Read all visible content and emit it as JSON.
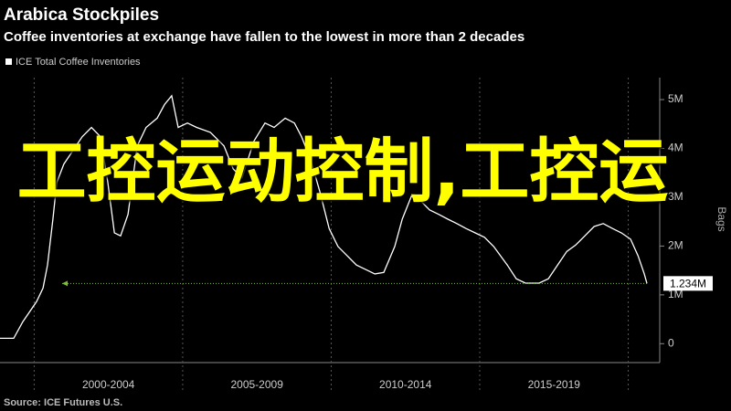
{
  "chart_data": {
    "type": "line",
    "title": "Arabica Stockpiles",
    "subtitle": "Coffee inventories at exchange have fallen to the lowest in more than 2 decades",
    "y_axis_label": "Bags",
    "source": "Source: ICE Futures U.S.",
    "series": [
      {
        "name": "ICE Total Coffee Inventories",
        "color": "#ffffff",
        "x": [
          1998.85,
          1999.31,
          1999.62,
          2000.08,
          2000.3,
          2000.45,
          2000.63,
          2000.76,
          2001.0,
          2001.31,
          2001.62,
          2001.93,
          2002.23,
          2002.48,
          2002.7,
          2002.91,
          2003.16,
          2003.47,
          2003.77,
          2004.14,
          2004.39,
          2004.63,
          2004.85,
          2005.16,
          2005.47,
          2005.93,
          2006.39,
          2006.7,
          2007.0,
          2007.4,
          2007.77,
          2008.08,
          2008.45,
          2008.76,
          2009.0,
          2009.31,
          2009.62,
          2009.93,
          2010.23,
          2010.54,
          2010.85,
          2011.16,
          2011.47,
          2011.77,
          2012.14,
          2012.39,
          2012.7,
          2013.0,
          2013.31,
          2013.62,
          2013.93,
          2014.23,
          2014.54,
          2014.85,
          2015.16,
          2015.47,
          2015.93,
          2016.23,
          2016.54,
          2017.0,
          2017.31,
          2017.62,
          2017.93,
          2018.23,
          2018.54,
          2018.85,
          2019.16,
          2019.47,
          2019.77,
          2020.08,
          2020.33,
          2020.54,
          2020.63
        ],
        "values": [
          0.11,
          0.11,
          0.45,
          0.86,
          1.14,
          1.61,
          2.55,
          3.3,
          3.68,
          3.96,
          4.24,
          4.43,
          4.24,
          3.3,
          2.27,
          2.21,
          2.65,
          4.05,
          4.43,
          4.62,
          4.9,
          5.08,
          4.43,
          4.52,
          4.43,
          4.33,
          4.05,
          3.58,
          3.4,
          4.15,
          4.52,
          4.43,
          4.62,
          4.52,
          4.24,
          3.77,
          3.11,
          2.36,
          1.99,
          1.8,
          1.61,
          1.52,
          1.43,
          1.46,
          1.99,
          2.55,
          3.02,
          2.93,
          2.74,
          2.65,
          2.55,
          2.46,
          2.36,
          2.27,
          2.18,
          1.99,
          1.61,
          1.33,
          1.24,
          1.24,
          1.33,
          1.61,
          1.89,
          2.02,
          2.21,
          2.4,
          2.46,
          2.36,
          2.27,
          2.14,
          1.8,
          1.43,
          1.234
        ]
      }
    ],
    "last_value_label": {
      "value": 1.234,
      "label": "1.234M"
    },
    "xlim": [
      1998.85,
      2021.06
    ],
    "xticks": [
      {
        "value": 2002.5,
        "label": "2000-2004"
      },
      {
        "value": 2007.5,
        "label": "2005-2009"
      },
      {
        "value": 2012.5,
        "label": "2010-2014"
      },
      {
        "value": 2017.5,
        "label": "2015-2019"
      }
    ],
    "ylim": [
      -0.35,
      5.45
    ],
    "yticks": [
      0,
      {
        "value": 1,
        "label": "1M"
      },
      {
        "value": 2,
        "label": "2M"
      },
      {
        "value": 3,
        "label": "3M"
      },
      {
        "value": 4,
        "label": "4M"
      },
      {
        "value": 5,
        "label": "5M"
      }
    ]
  },
  "overlay_text": "工控运动控制,工控运"
}
